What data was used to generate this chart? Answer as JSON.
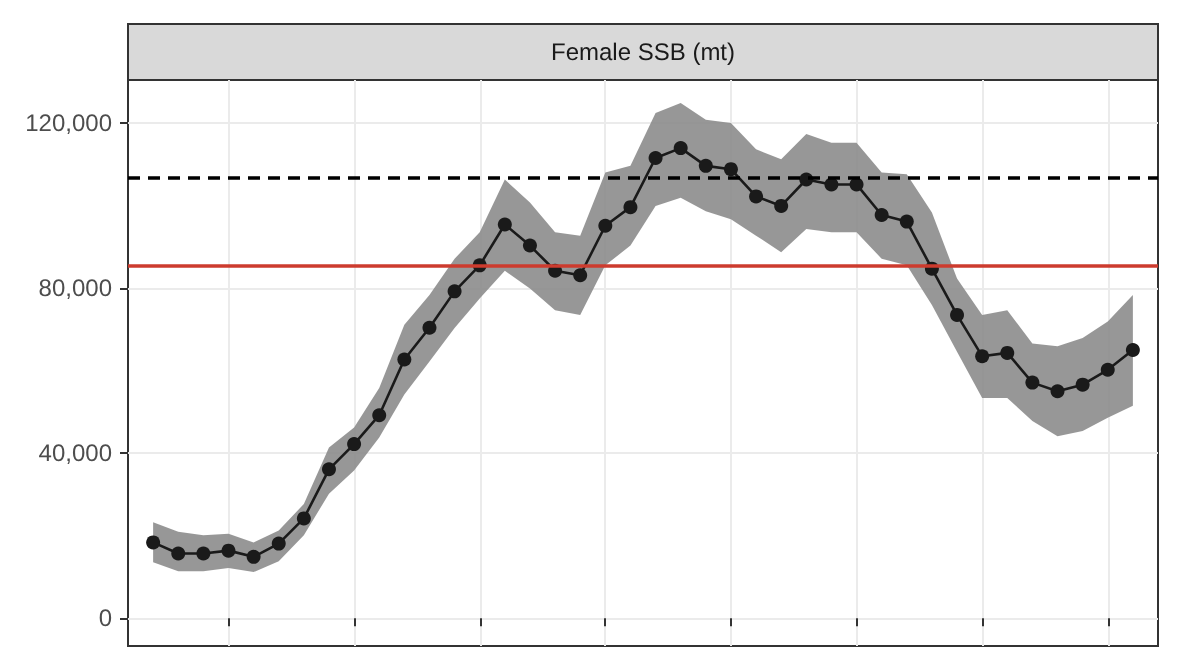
{
  "chart_data": {
    "type": "line",
    "title": "Female SSB (mt)",
    "categories": [
      null,
      null,
      null,
      null,
      null,
      null,
      null,
      null,
      null,
      null,
      null,
      null,
      null,
      null,
      null,
      null,
      null,
      null,
      null,
      null,
      null,
      null,
      null,
      null,
      null,
      null,
      null,
      null,
      null,
      null,
      null,
      null,
      null,
      null,
      null,
      null,
      null,
      null,
      null,
      null
    ],
    "series": [
      {
        "color": "#1a1a1a",
        "marker": "circle",
        "line_style": "solid",
        "values": [
          18400,
          15700,
          15700,
          16400,
          14900,
          18100,
          24200,
          36100,
          42200,
          49200,
          62700,
          70400,
          79200,
          85500,
          95400,
          90300,
          84200,
          83100,
          95100,
          99600,
          111500,
          113900,
          109600,
          108800,
          102200,
          99900,
          106300,
          105100,
          105100,
          97700,
          96100,
          84700,
          73500,
          63500,
          64300,
          57100,
          55000,
          56600,
          60200,
          65000
        ],
        "lower": [
          13600,
          11400,
          11400,
          12200,
          11200,
          13800,
          20100,
          30200,
          35800,
          43800,
          54200,
          62200,
          70300,
          77500,
          84200,
          79900,
          74600,
          73500,
          85500,
          90300,
          99900,
          101900,
          98600,
          96700,
          92700,
          88700,
          94300,
          93500,
          93500,
          87100,
          85500,
          75900,
          64600,
          53400,
          53400,
          47800,
          44100,
          45400,
          48600,
          51500
        ],
        "upper": [
          23300,
          21000,
          20100,
          20500,
          18400,
          21300,
          27700,
          41400,
          46200,
          55800,
          71100,
          78300,
          87100,
          93500,
          106300,
          100700,
          93500,
          92700,
          108000,
          109600,
          122400,
          124800,
          120800,
          120000,
          113600,
          111200,
          117300,
          115200,
          115200,
          108000,
          107600,
          98300,
          82300,
          73500,
          74600,
          66600,
          65900,
          67900,
          71900,
          78300
        ]
      }
    ],
    "ylim": [
      -6700,
      130400
    ],
    "yticks": [
      0,
      {
        "value": 40000,
        "label": "40,000"
      },
      {
        "value": 80000,
        "label": "80,000"
      },
      {
        "value": 120000,
        "label": "120,000"
      }
    ],
    "grid": true,
    "ref_lines": [
      {
        "axis": "y",
        "value": 106800,
        "color": "#000000",
        "line_style": "dashed"
      },
      {
        "axis": "y",
        "value": 85500,
        "color": "#cd3b2e",
        "line_style": "solid"
      }
    ]
  }
}
